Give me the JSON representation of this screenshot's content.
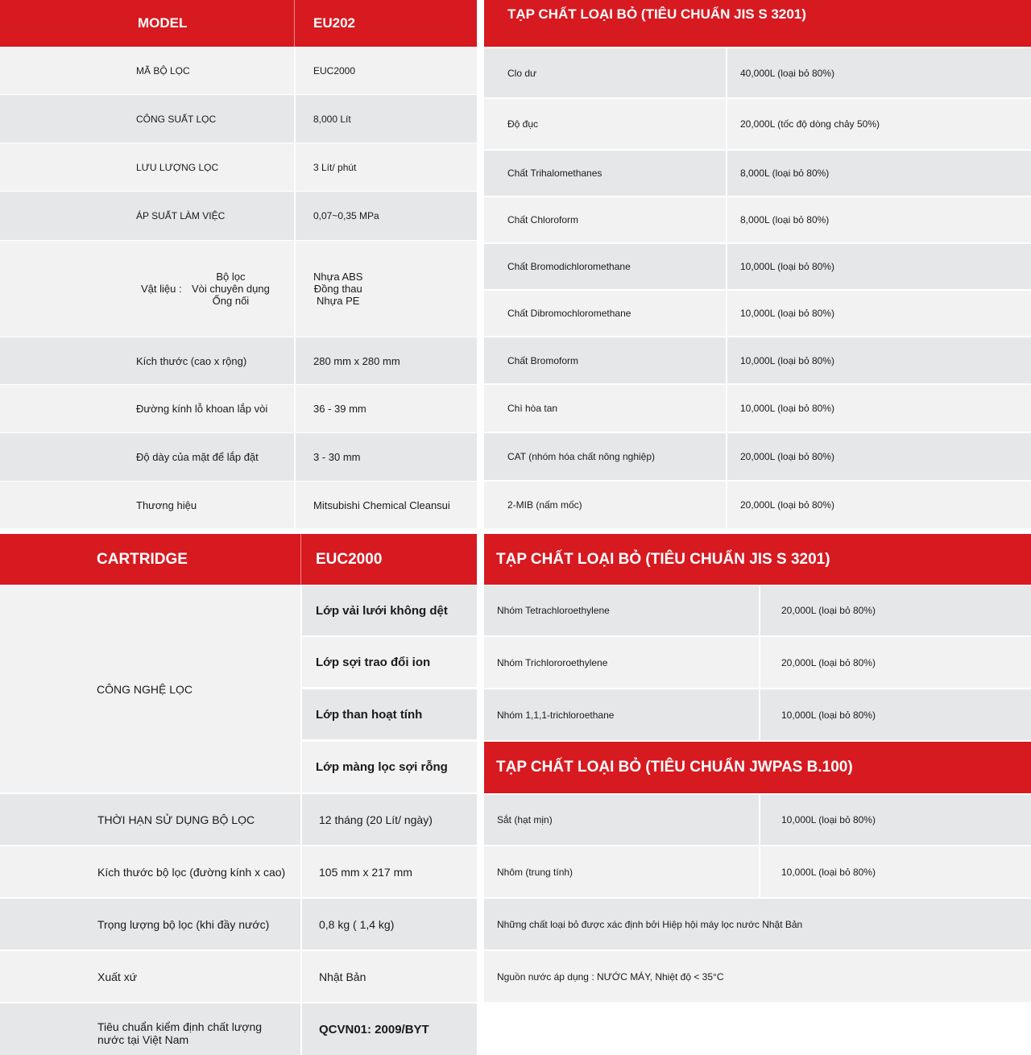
{
  "spec": {
    "header": {
      "left": "MODEL",
      "right": "EU202"
    },
    "rows": [
      {
        "label": "MÃ BỘ LỌC",
        "value": "EUC2000"
      },
      {
        "label": "CÔNG SUẤT LỌC",
        "value": "8,000 Lít"
      },
      {
        "label": "LƯU LƯỢNG LỌC",
        "value": "3 Lít/ phút"
      },
      {
        "label": "ÁP SUẤT LÀM VIỆC",
        "value": "0,07~0,35 MPa"
      }
    ],
    "material": {
      "label": "Vật liệu :",
      "items": [
        "Bộ lọc",
        "Vòi chuyên dụng",
        "Ống nối"
      ],
      "values": [
        "Nhựa ABS",
        "Đồng thau",
        "Nhựa PE"
      ]
    },
    "rows2": [
      {
        "label": "Kích thước (cao x rộng)",
        "value": "280 mm x 280 mm"
      },
      {
        "label": "Đường kính lỗ khoan lắp vòi",
        "value": "36 - 39 mm"
      },
      {
        "label": "Độ dày của mặt để lắp đặt",
        "value": "3 - 30 mm"
      },
      {
        "label": "Thương hiệu",
        "value": "Mitsubishi Chemical Cleansui"
      }
    ]
  },
  "impurities1": {
    "header": "TẠP CHẤT LOẠI BỎ (TIÊU CHUẨN JIS S 3201)",
    "rows": [
      {
        "name": "Clo dư",
        "value": "40,000L (loại bỏ 80%)"
      },
      {
        "name": "Độ đục",
        "value": "20,000L (tốc độ dòng chảy 50%)"
      },
      {
        "name": "Chất Trihalomethanes",
        "value": "8,000L (loại bỏ 80%)"
      },
      {
        "name": "Chất Chloroform",
        "value": "8,000L (loại bỏ 80%)"
      },
      {
        "name": "Chất Bromodichloromethane",
        "value": "10,000L (loại bỏ 80%)"
      },
      {
        "name": "Chất Dibromochloromethane",
        "value": "10,000L (loại bỏ 80%)"
      },
      {
        "name": "Chất Bromoform",
        "value": "10,000L (loại bỏ 80%)"
      },
      {
        "name": "Chì hòa tan",
        "value": "10,000L (loại bỏ 80%)"
      },
      {
        "name": "CAT (nhóm hóa chất nông nghiệp)",
        "value": "20,000L (loại bỏ 80%)"
      },
      {
        "name": "2-MIB (nấm mốc)",
        "value": "20,000L (loại bỏ 80%)"
      }
    ]
  },
  "cartridge": {
    "header": {
      "left": "CARTRIDGE",
      "right": "EUC2000"
    },
    "tech_label": "CÔNG NGHỆ LỌC",
    "layers": [
      "Lớp vải lưới không dệt",
      "Lớp sợi trao đổi ion",
      "Lớp than hoạt tính",
      "Lớp màng lọc sợi rỗng"
    ],
    "rows": [
      {
        "label": "THỜI HẠN SỬ DỤNG BỘ LỌC",
        "value": "12 tháng (20 Lít/ ngày)"
      },
      {
        "label": "Kích thước bộ lọc (đường kính x cao)",
        "value": "105 mm x 217 mm"
      },
      {
        "label": "Trọng lượng bộ lọc (khi đầy nước)",
        "value": "0,8 kg ( 1,4 kg)"
      },
      {
        "label": "Xuất xứ",
        "value": "Nhật Bản"
      }
    ],
    "standard": {
      "label_line1": "Tiêu chuẩn kiểm định chất lượng",
      "label_line2": "nước tại Việt Nam",
      "value": "QCVN01: 2009/BYT"
    }
  },
  "impurities2": {
    "header": "TẠP CHẤT LOẠI BỎ (TIÊU CHUẨN JIS S 3201)",
    "rows": [
      {
        "name": "Nhóm Tetrachloroethylene",
        "value": "20,000L (loại bỏ 80%)"
      },
      {
        "name": "Nhóm Trichlororoethylene",
        "value": "20,000L (loại bỏ 80%)"
      },
      {
        "name": "Nhóm 1,1,1-trichloroethane",
        "value": "10,000L (loại bỏ 80%)"
      }
    ]
  },
  "impurities3": {
    "header": "TẠP CHẤT LOẠI BỎ (TIÊU CHUẨN JWPAS B.100)",
    "rows": [
      {
        "name": "Sắt (hạt mịn)",
        "value": "10,000L (loại bỏ 80%)"
      },
      {
        "name": "Nhôm (trung tính)",
        "value": "10,000L (loại bỏ 80%)"
      }
    ],
    "note1": "Những chất loại bỏ được xác định bởi Hiệp hội máy lọc nước Nhật Bản",
    "note2": "Nguồn nước áp dụng : NƯỚC MÁY, Nhiệt độ < 35°C"
  },
  "colors": {
    "accent": "#d71920",
    "row_light": "#f2f2f2",
    "row_dark": "#e6e7e8"
  }
}
